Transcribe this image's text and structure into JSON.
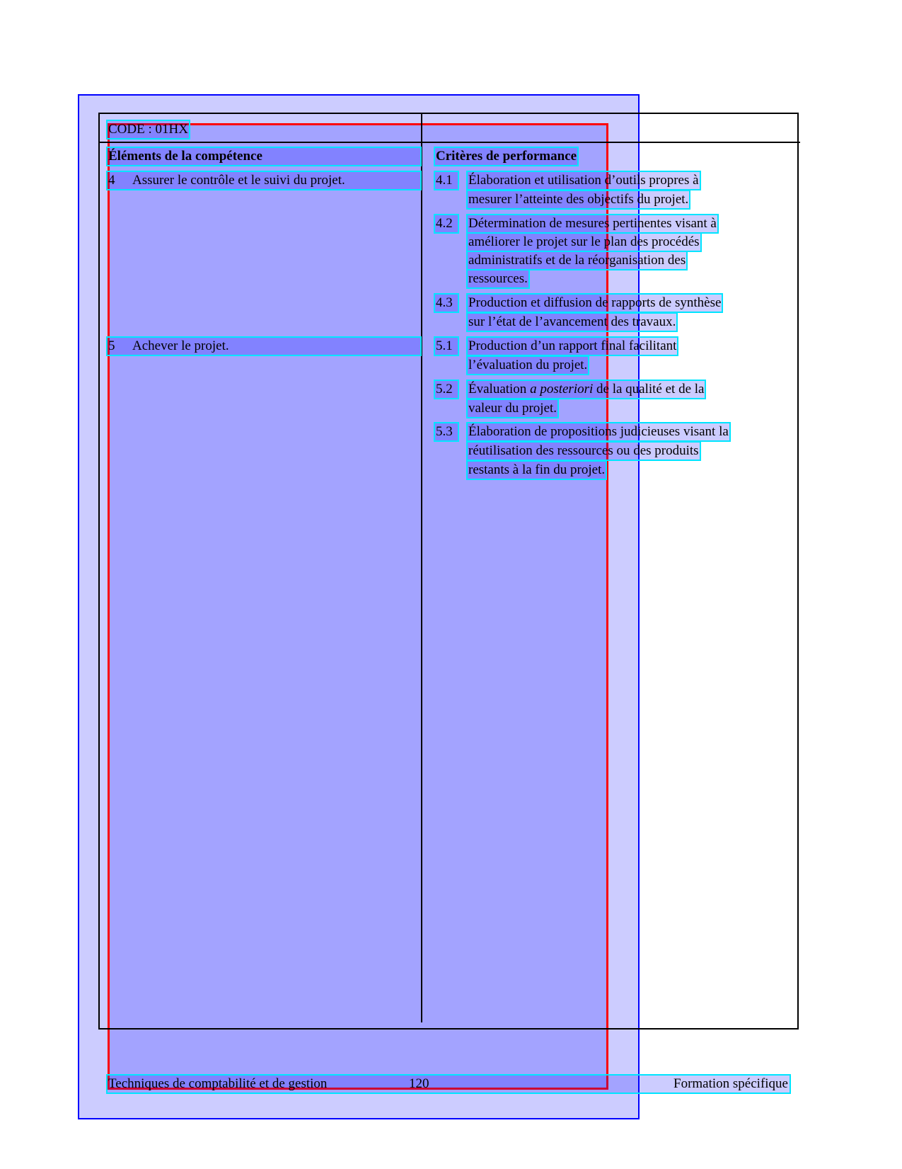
{
  "code": "CODE : 01HX",
  "headers": {
    "elements": "Éléments de la compétence",
    "criteria": "Critères de performance"
  },
  "elements": [
    {
      "num": "4",
      "text": "Assurer le contrôle et le suivi du projet."
    },
    {
      "num": "5",
      "text": "Achever le projet."
    }
  ],
  "criteria": {
    "c41": {
      "num": "4.1",
      "lines": [
        "Élaboration et utilisation d’outils propres à",
        "mesurer l’atteinte des objectifs du projet."
      ]
    },
    "c42": {
      "num": "4.2",
      "lines": [
        "Détermination de mesures pertinentes visant à",
        "améliorer le projet sur le plan des procédés",
        "administratifs et de la réorganisation des",
        "ressources."
      ]
    },
    "c43": {
      "num": "4.3",
      "lines": [
        "Production et diffusion de rapports de synthèse",
        "sur l’état de l’avancement des travaux."
      ]
    },
    "c51": {
      "num": "5.1",
      "lines": [
        "Production d’un rapport final facilitant",
        "l’évaluation du projet."
      ]
    },
    "c52": {
      "num": "5.2",
      "line1_pre": "Évaluation ",
      "line1_italic": "a posteriori",
      "line1_post": " de la qualité et de la",
      "lines": [
        "",
        "valeur du projet."
      ]
    },
    "c53": {
      "num": "5.3",
      "lines": [
        "Élaboration de propositions judicieuses visant la",
        "réutilisation des ressources ou des produits",
        "restants à la fin du projet."
      ]
    }
  },
  "footer": {
    "left": "Techniques de comptabilité et de gestion",
    "page": "120",
    "right": "Formation spécifique"
  },
  "colors": {
    "page_box": "#0000ff",
    "focus_box": "#ff0000",
    "line_box": "#00e5ff"
  }
}
